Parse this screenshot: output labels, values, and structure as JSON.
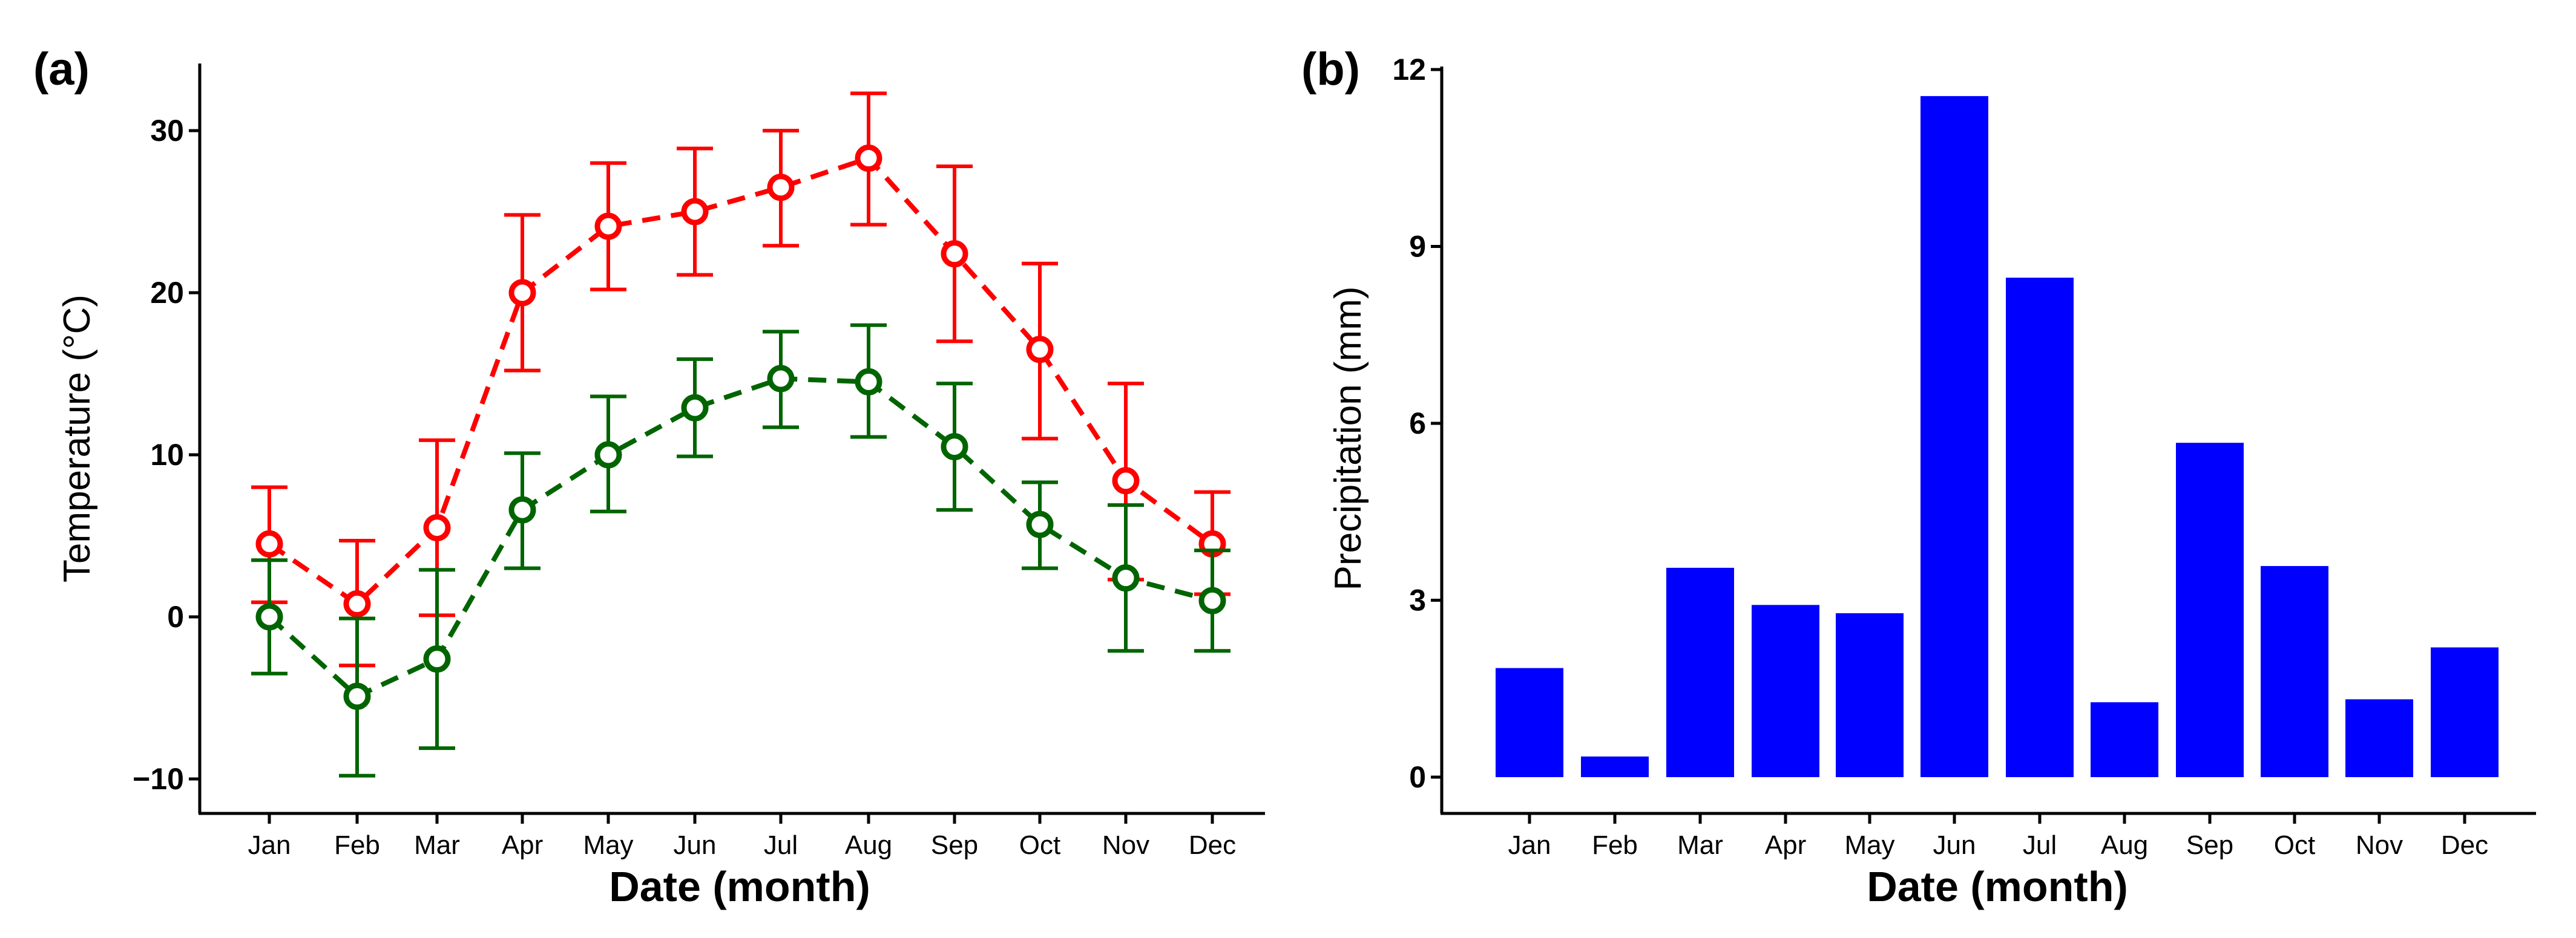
{
  "panels": {
    "a": {
      "label": "(a)"
    },
    "b": {
      "label": "(b)"
    }
  },
  "chart_data": [
    {
      "type": "line",
      "categories": [
        "Jan",
        "Feb",
        "Mar",
        "Apr",
        "May",
        "Jun",
        "Jul",
        "Aug",
        "Sep",
        "Oct",
        "Nov",
        "Dec"
      ],
      "xlabel": "Date (month)",
      "ylabel": "Temperature (°C)",
      "ylim": [
        -12,
        35
      ],
      "yticks": [
        -10,
        0,
        10,
        20,
        30
      ],
      "yticklabels": [
        "−10",
        "0",
        "10",
        "20",
        "30"
      ],
      "grid": false,
      "series": [
        {
          "color": "#ff0000",
          "values": [
            4.5,
            0.8,
            5.5,
            20.0,
            24.1,
            25.0,
            26.5,
            28.3,
            22.4,
            16.5,
            8.4,
            4.5
          ],
          "err_low": [
            0.9,
            -3.0,
            0.1,
            15.2,
            20.2,
            21.1,
            22.9,
            24.2,
            17.0,
            11.0,
            2.3,
            1.4
          ],
          "err_high": [
            8.0,
            4.7,
            10.9,
            24.8,
            28.0,
            28.9,
            30.0,
            32.3,
            27.8,
            21.8,
            14.4,
            7.7
          ]
        },
        {
          "color": "#006400",
          "values": [
            0.0,
            -4.9,
            -2.6,
            6.6,
            10.0,
            12.9,
            14.7,
            14.5,
            10.5,
            5.7,
            2.4,
            1.0
          ],
          "err_low": [
            -3.5,
            -9.8,
            -8.1,
            3.0,
            6.5,
            9.9,
            11.7,
            11.1,
            6.6,
            3.0,
            -2.1,
            -2.1
          ],
          "err_high": [
            3.5,
            -0.1,
            2.9,
            10.1,
            13.6,
            15.9,
            17.6,
            18.0,
            14.4,
            8.3,
            6.9,
            4.1
          ]
        }
      ]
    },
    {
      "type": "bar",
      "categories": [
        "Jan",
        "Feb",
        "Mar",
        "Apr",
        "May",
        "Jun",
        "Jul",
        "Aug",
        "Sep",
        "Oct",
        "Nov",
        "Dec"
      ],
      "values": [
        1.85,
        0.35,
        3.55,
        2.92,
        2.78,
        11.55,
        8.47,
        1.27,
        5.67,
        3.58,
        1.32,
        2.2
      ],
      "color": "#0000ff",
      "xlabel": "Date (month)",
      "ylabel": "Precipitation (mm)",
      "ylim": [
        -0.6,
        12
      ],
      "yticks": [
        0,
        3,
        6,
        9,
        12
      ],
      "yticklabels": [
        "0",
        "3",
        "6",
        "9",
        "12"
      ],
      "grid": false
    }
  ]
}
